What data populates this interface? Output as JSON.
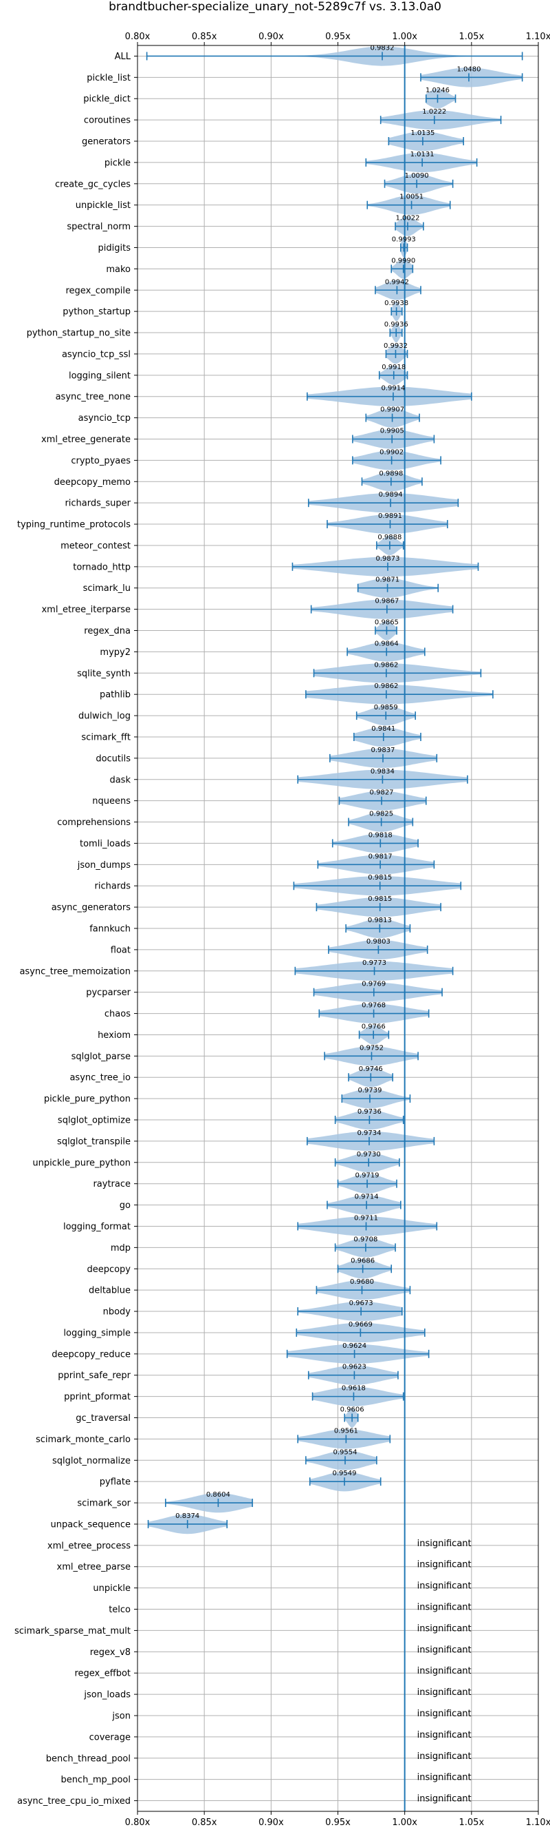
{
  "chart_data": {
    "type": "violin",
    "title": "brandtbucher-specialize_unary_not-5289c7f vs. 3.13.0a0",
    "xlim": [
      0.8,
      1.1
    ],
    "x_ticks": [
      "0.80x",
      "0.85x",
      "0.90x",
      "0.95x",
      "1.00x",
      "1.05x",
      "1.10x"
    ],
    "x_tick_values": [
      0.8,
      0.85,
      0.9,
      0.95,
      1.0,
      1.05,
      1.1
    ],
    "grid": true,
    "colors": {
      "violin_fill": "#a7c6e2",
      "whisker": "#1f77b4",
      "reference_line": "#1f77b4",
      "grid": "#b0b0b0"
    },
    "reference_value": 1.0,
    "insignificant_label": "insignificant",
    "benchmarks": [
      {
        "name": "ALL",
        "value": 0.9832,
        "label": "0.9832",
        "min": 0.807,
        "max": 1.088,
        "spread": 0.04
      },
      {
        "name": "pickle_list",
        "value": 1.048,
        "label": "1.0480",
        "min": 1.012,
        "max": 1.088,
        "spread": 0.035
      },
      {
        "name": "pickle_dict",
        "value": 1.0246,
        "label": "1.0246",
        "min": 1.016,
        "max": 1.038,
        "spread": 0.012
      },
      {
        "name": "coroutines",
        "value": 1.0222,
        "label": "1.0222",
        "min": 0.982,
        "max": 1.072,
        "spread": 0.04
      },
      {
        "name": "generators",
        "value": 1.0135,
        "label": "1.0135",
        "min": 0.988,
        "max": 1.044,
        "spread": 0.028
      },
      {
        "name": "pickle",
        "value": 1.0131,
        "label": "1.0131",
        "min": 0.971,
        "max": 1.054,
        "spread": 0.035
      },
      {
        "name": "create_gc_cycles",
        "value": 1.009,
        "label": "1.0090",
        "min": 0.985,
        "max": 1.036,
        "spread": 0.022
      },
      {
        "name": "unpickle_list",
        "value": 1.0051,
        "label": "1.0051",
        "min": 0.972,
        "max": 1.034,
        "spread": 0.025
      },
      {
        "name": "spectral_norm",
        "value": 1.0022,
        "label": "1.0022",
        "min": 0.993,
        "max": 1.014,
        "spread": 0.01
      },
      {
        "name": "pidigits",
        "value": 0.9993,
        "label": "0.9993",
        "min": 0.997,
        "max": 1.002,
        "spread": 0.003
      },
      {
        "name": "mako",
        "value": 0.999,
        "label": "0.9990",
        "min": 0.99,
        "max": 1.006,
        "spread": 0.008
      },
      {
        "name": "regex_compile",
        "value": 0.9942,
        "label": "0.9942",
        "min": 0.978,
        "max": 1.012,
        "spread": 0.016
      },
      {
        "name": "python_startup",
        "value": 0.9938,
        "label": "0.9938",
        "min": 0.99,
        "max": 0.998,
        "spread": 0.004
      },
      {
        "name": "python_startup_no_site",
        "value": 0.9936,
        "label": "0.9936",
        "min": 0.989,
        "max": 0.998,
        "spread": 0.004
      },
      {
        "name": "asyncio_tcp_ssl",
        "value": 0.9932,
        "label": "0.9932",
        "min": 0.986,
        "max": 1.002,
        "spread": 0.008
      },
      {
        "name": "logging_silent",
        "value": 0.9918,
        "label": "0.9918",
        "min": 0.981,
        "max": 1.002,
        "spread": 0.01
      },
      {
        "name": "async_tree_none",
        "value": 0.9914,
        "label": "0.9914",
        "min": 0.927,
        "max": 1.05,
        "spread": 0.06
      },
      {
        "name": "asyncio_tcp",
        "value": 0.9907,
        "label": "0.9907",
        "min": 0.971,
        "max": 1.011,
        "spread": 0.018
      },
      {
        "name": "xml_etree_generate",
        "value": 0.9905,
        "label": "0.9905",
        "min": 0.961,
        "max": 1.022,
        "spread": 0.028
      },
      {
        "name": "crypto_pyaes",
        "value": 0.9902,
        "label": "0.9902",
        "min": 0.961,
        "max": 1.027,
        "spread": 0.03
      },
      {
        "name": "deepcopy_memo",
        "value": 0.9898,
        "label": "0.9898",
        "min": 0.968,
        "max": 1.013,
        "spread": 0.02
      },
      {
        "name": "richards_super",
        "value": 0.9894,
        "label": "0.9894",
        "min": 0.928,
        "max": 1.04,
        "spread": 0.055
      },
      {
        "name": "typing_runtime_protocols",
        "value": 0.9891,
        "label": "0.9891",
        "min": 0.942,
        "max": 1.032,
        "spread": 0.04
      },
      {
        "name": "meteor_contest",
        "value": 0.9888,
        "label": "0.9888",
        "min": 0.979,
        "max": 0.999,
        "spread": 0.009
      },
      {
        "name": "tornado_http",
        "value": 0.9873,
        "label": "0.9873",
        "min": 0.916,
        "max": 1.055,
        "spread": 0.065
      },
      {
        "name": "scimark_lu",
        "value": 0.9871,
        "label": "0.9871",
        "min": 0.965,
        "max": 1.025,
        "spread": 0.028
      },
      {
        "name": "xml_etree_iterparse",
        "value": 0.9867,
        "label": "0.9867",
        "min": 0.93,
        "max": 1.036,
        "spread": 0.05
      },
      {
        "name": "regex_dna",
        "value": 0.9865,
        "label": "0.9865",
        "min": 0.978,
        "max": 0.994,
        "spread": 0.008
      },
      {
        "name": "mypy2",
        "value": 0.9864,
        "label": "0.9864",
        "min": 0.957,
        "max": 1.015,
        "spread": 0.027
      },
      {
        "name": "sqlite_synth",
        "value": 0.9862,
        "label": "0.9862",
        "min": 0.932,
        "max": 1.057,
        "spread": 0.058
      },
      {
        "name": "pathlib",
        "value": 0.9862,
        "label": "0.9862",
        "min": 0.926,
        "max": 1.066,
        "spread": 0.065
      },
      {
        "name": "dulwich_log",
        "value": 0.9859,
        "label": "0.9859",
        "min": 0.964,
        "max": 1.008,
        "spread": 0.02
      },
      {
        "name": "scimark_fft",
        "value": 0.9841,
        "label": "0.9841",
        "min": 0.962,
        "max": 1.012,
        "spread": 0.025
      },
      {
        "name": "docutils",
        "value": 0.9837,
        "label": "0.9837",
        "min": 0.944,
        "max": 1.024,
        "spread": 0.038
      },
      {
        "name": "dask",
        "value": 0.9834,
        "label": "0.9834",
        "min": 0.92,
        "max": 1.047,
        "spread": 0.06
      },
      {
        "name": "nqueens",
        "value": 0.9827,
        "label": "0.9827",
        "min": 0.951,
        "max": 1.016,
        "spread": 0.032
      },
      {
        "name": "comprehensions",
        "value": 0.9825,
        "label": "0.9825",
        "min": 0.958,
        "max": 1.006,
        "spread": 0.022
      },
      {
        "name": "tomli_loads",
        "value": 0.9818,
        "label": "0.9818",
        "min": 0.946,
        "max": 1.01,
        "spread": 0.03
      },
      {
        "name": "json_dumps",
        "value": 0.9817,
        "label": "0.9817",
        "min": 0.935,
        "max": 1.022,
        "spread": 0.04
      },
      {
        "name": "richards",
        "value": 0.9815,
        "label": "0.9815",
        "min": 0.917,
        "max": 1.042,
        "spread": 0.06
      },
      {
        "name": "async_generators",
        "value": 0.9815,
        "label": "0.9815",
        "min": 0.934,
        "max": 1.027,
        "spread": 0.045
      },
      {
        "name": "fannkuch",
        "value": 0.9813,
        "label": "0.9813",
        "min": 0.956,
        "max": 1.004,
        "spread": 0.022
      },
      {
        "name": "float",
        "value": 0.9803,
        "label": "0.9803",
        "min": 0.943,
        "max": 1.017,
        "spread": 0.035
      },
      {
        "name": "async_tree_memoization",
        "value": 0.9773,
        "label": "0.9773",
        "min": 0.918,
        "max": 1.036,
        "spread": 0.058
      },
      {
        "name": "pycparser",
        "value": 0.9769,
        "label": "0.9769",
        "min": 0.932,
        "max": 1.028,
        "spread": 0.046
      },
      {
        "name": "chaos",
        "value": 0.9768,
        "label": "0.9768",
        "min": 0.936,
        "max": 1.018,
        "spread": 0.04
      },
      {
        "name": "hexiom",
        "value": 0.9766,
        "label": "0.9766",
        "min": 0.966,
        "max": 0.988,
        "spread": 0.01
      },
      {
        "name": "sqlglot_parse",
        "value": 0.9752,
        "label": "0.9752",
        "min": 0.94,
        "max": 1.01,
        "spread": 0.033
      },
      {
        "name": "async_tree_io",
        "value": 0.9746,
        "label": "0.9746",
        "min": 0.958,
        "max": 0.991,
        "spread": 0.016
      },
      {
        "name": "pickle_pure_python",
        "value": 0.9739,
        "label": "0.9739",
        "min": 0.953,
        "max": 1.004,
        "spread": 0.024
      },
      {
        "name": "sqlglot_optimize",
        "value": 0.9736,
        "label": "0.9736",
        "min": 0.948,
        "max": 0.999,
        "spread": 0.024
      },
      {
        "name": "sqlglot_transpile",
        "value": 0.9734,
        "label": "0.9734",
        "min": 0.927,
        "max": 1.022,
        "spread": 0.046
      },
      {
        "name": "unpickle_pure_python",
        "value": 0.973,
        "label": "0.9730",
        "min": 0.948,
        "max": 0.996,
        "spread": 0.022
      },
      {
        "name": "raytrace",
        "value": 0.9719,
        "label": "0.9719",
        "min": 0.95,
        "max": 0.994,
        "spread": 0.02
      },
      {
        "name": "go",
        "value": 0.9714,
        "label": "0.9714",
        "min": 0.942,
        "max": 0.997,
        "spread": 0.026
      },
      {
        "name": "logging_format",
        "value": 0.9711,
        "label": "0.9711",
        "min": 0.92,
        "max": 1.024,
        "spread": 0.05
      },
      {
        "name": "mdp",
        "value": 0.9708,
        "label": "0.9708",
        "min": 0.948,
        "max": 0.993,
        "spread": 0.021
      },
      {
        "name": "deepcopy",
        "value": 0.9686,
        "label": "0.9686",
        "min": 0.95,
        "max": 0.99,
        "spread": 0.019
      },
      {
        "name": "deltablue",
        "value": 0.968,
        "label": "0.9680",
        "min": 0.934,
        "max": 1.004,
        "spread": 0.033
      },
      {
        "name": "nbody",
        "value": 0.9673,
        "label": "0.9673",
        "min": 0.92,
        "max": 0.998,
        "spread": 0.038
      },
      {
        "name": "logging_simple",
        "value": 0.9669,
        "label": "0.9669",
        "min": 0.919,
        "max": 1.015,
        "spread": 0.046
      },
      {
        "name": "deepcopy_reduce",
        "value": 0.9624,
        "label": "0.9624",
        "min": 0.912,
        "max": 1.018,
        "spread": 0.05
      },
      {
        "name": "pprint_safe_repr",
        "value": 0.9623,
        "label": "0.9623",
        "min": 0.928,
        "max": 0.995,
        "spread": 0.032
      },
      {
        "name": "pprint_pformat",
        "value": 0.9618,
        "label": "0.9618",
        "min": 0.931,
        "max": 0.999,
        "spread": 0.034
      },
      {
        "name": "gc_traversal",
        "value": 0.9606,
        "label": "0.9606",
        "min": 0.955,
        "max": 0.965,
        "spread": 0.005
      },
      {
        "name": "scimark_monte_carlo",
        "value": 0.9561,
        "label": "0.9561",
        "min": 0.92,
        "max": 0.989,
        "spread": 0.033
      },
      {
        "name": "sqlglot_normalize",
        "value": 0.9554,
        "label": "0.9554",
        "min": 0.926,
        "max": 0.979,
        "spread": 0.025
      },
      {
        "name": "pyflate",
        "value": 0.9549,
        "label": "0.9549",
        "min": 0.929,
        "max": 0.982,
        "spread": 0.025
      },
      {
        "name": "scimark_sor",
        "value": 0.8604,
        "label": "0.8604",
        "min": 0.821,
        "max": 0.886,
        "spread": 0.03
      },
      {
        "name": "unpack_sequence",
        "value": 0.8374,
        "label": "0.8374",
        "min": 0.808,
        "max": 0.867,
        "spread": 0.028
      },
      {
        "name": "xml_etree_process",
        "insignificant": true
      },
      {
        "name": "xml_etree_parse",
        "insignificant": true
      },
      {
        "name": "unpickle",
        "insignificant": true
      },
      {
        "name": "telco",
        "insignificant": true
      },
      {
        "name": "scimark_sparse_mat_mult",
        "insignificant": true
      },
      {
        "name": "regex_v8",
        "insignificant": true
      },
      {
        "name": "regex_effbot",
        "insignificant": true
      },
      {
        "name": "json_loads",
        "insignificant": true
      },
      {
        "name": "json",
        "insignificant": true
      },
      {
        "name": "coverage",
        "insignificant": true
      },
      {
        "name": "bench_thread_pool",
        "insignificant": true
      },
      {
        "name": "bench_mp_pool",
        "insignificant": true
      },
      {
        "name": "async_tree_cpu_io_mixed",
        "insignificant": true
      }
    ]
  }
}
